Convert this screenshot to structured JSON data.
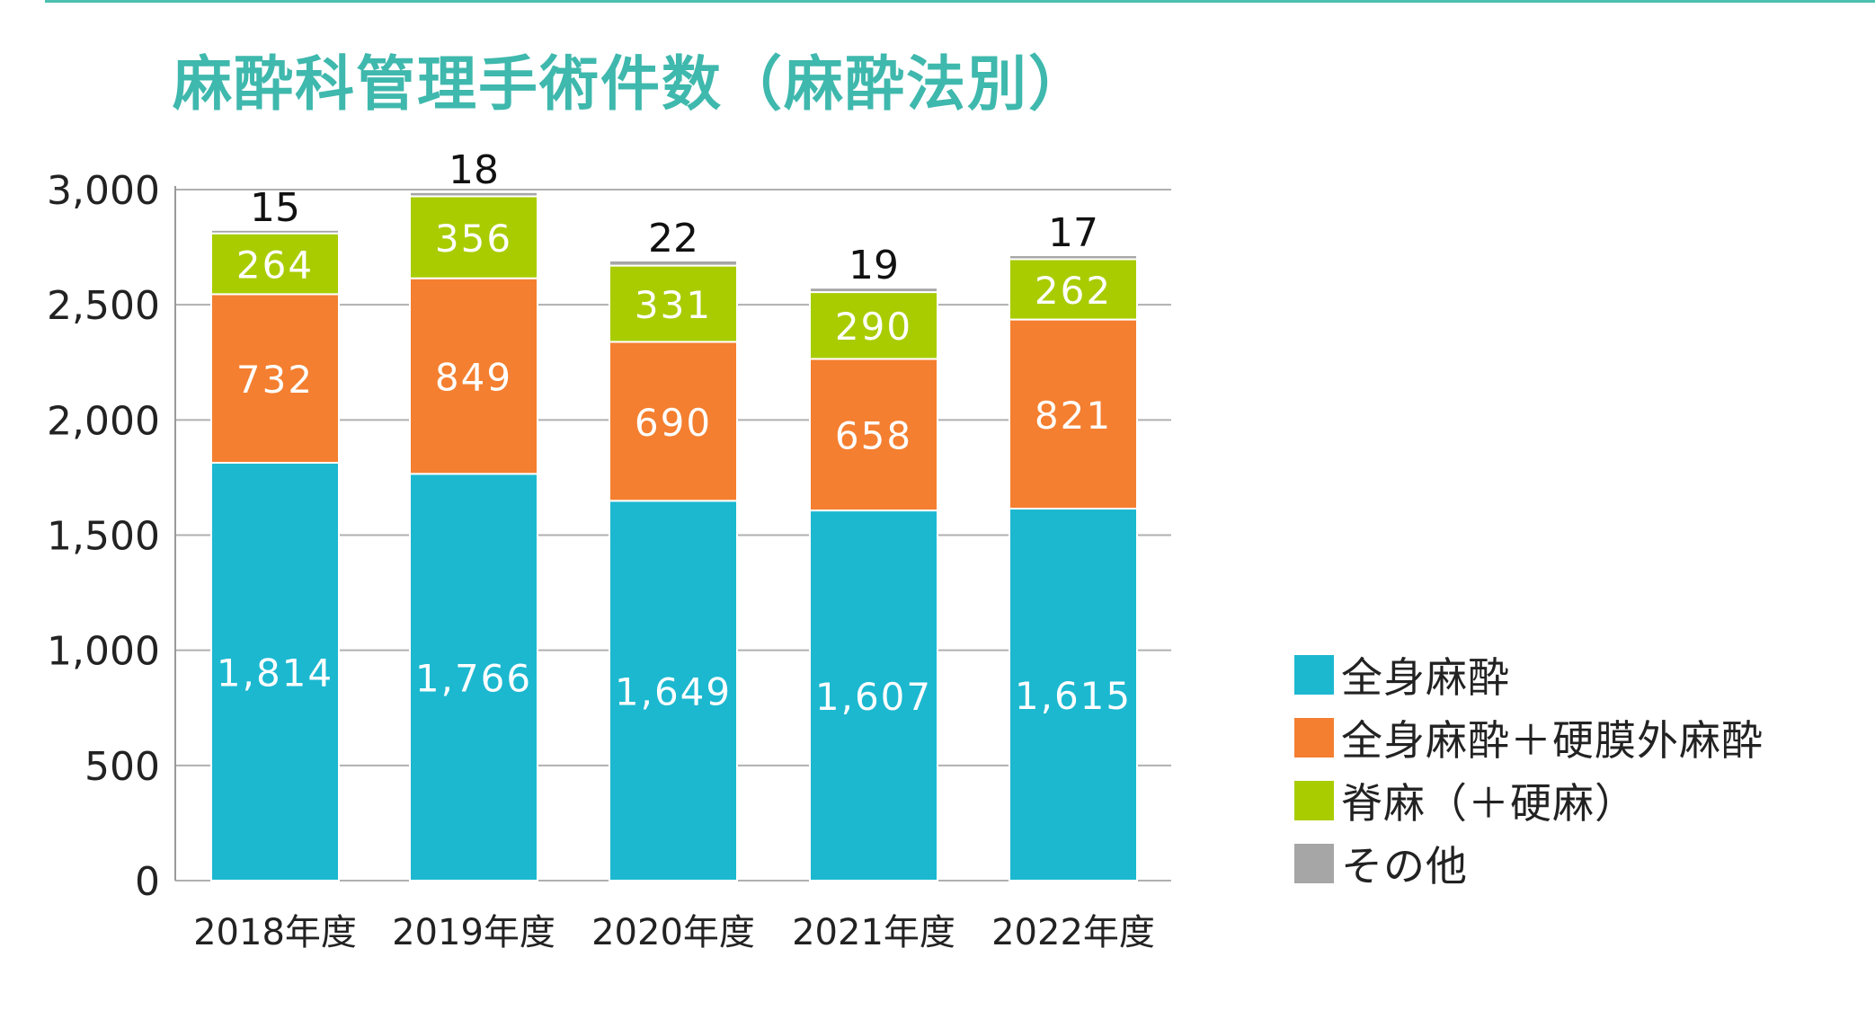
{
  "chart_data": {
    "type": "bar",
    "stacked": true,
    "title": "麻酔科管理手術件数（麻酔法別）",
    "xlabel": "",
    "ylabel": "",
    "categories": [
      "2018年度",
      "2019年度",
      "2020年度",
      "2021年度",
      "2022年度"
    ],
    "ylim": [
      0,
      3000
    ],
    "yticks": [
      0,
      500,
      1000,
      1500,
      2000,
      2500,
      3000
    ],
    "ytick_labels": [
      "0",
      "500",
      "1,000",
      "1,500",
      "2,000",
      "2,500",
      "3,000"
    ],
    "grid": true,
    "legend_position": "right",
    "series": [
      {
        "name": "全身麻酔",
        "color": "#1cb8d0",
        "values": [
          1814,
          1766,
          1649,
          1607,
          1615
        ],
        "labels": [
          "1,814",
          "1,766",
          "1,649",
          "1,607",
          "1,615"
        ]
      },
      {
        "name": "全身麻酔＋硬膜外麻酔",
        "color": "#f47f30",
        "values": [
          732,
          849,
          690,
          658,
          821
        ],
        "labels": [
          "732",
          "849",
          "690",
          "658",
          "821"
        ]
      },
      {
        "name": "脊麻（＋硬麻）",
        "color": "#a8cc00",
        "values": [
          264,
          356,
          331,
          290,
          262
        ],
        "labels": [
          "264",
          "356",
          "331",
          "290",
          "262"
        ]
      },
      {
        "name": "その他",
        "color": "#a6a6a6",
        "values": [
          15,
          18,
          22,
          19,
          17
        ],
        "labels": [
          "15",
          "18",
          "22",
          "19",
          "17"
        ]
      }
    ]
  }
}
